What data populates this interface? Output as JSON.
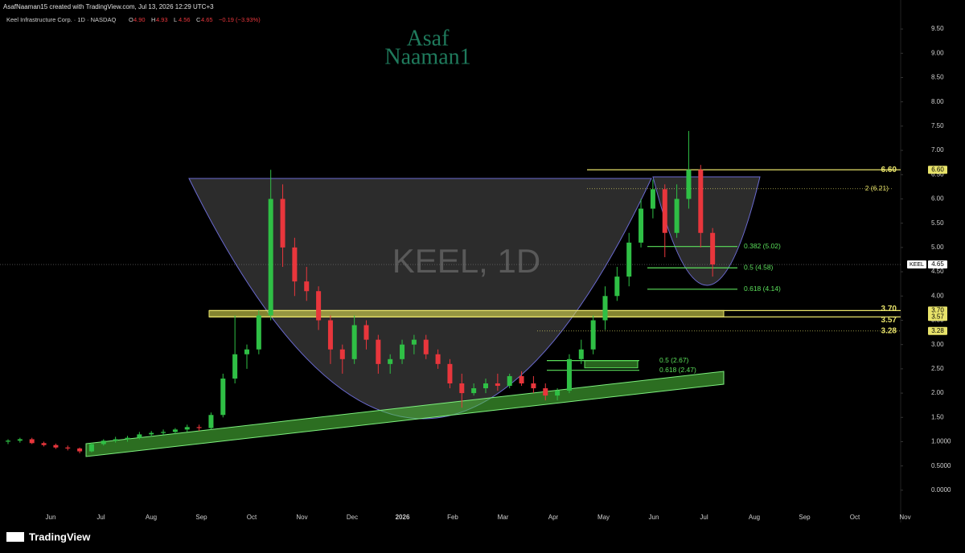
{
  "chart_data": {
    "type": "candlestick",
    "header": "AsafNaaman15 created with TradingView.com, Jul 13, 2026 12:29 UTC+3",
    "symbol_line": "Keel Infrastructure Corp. · 1D · NASDAQ",
    "ohlc_header": [
      {
        "key": "O",
        "value": 4.9,
        "label": "4.90"
      },
      {
        "key": "H",
        "value": 4.93,
        "label": "4.93"
      },
      {
        "key": "L",
        "value": 4.56,
        "label": "4.56"
      },
      {
        "key": "C",
        "value": 4.65,
        "label": "4.65"
      }
    ],
    "change": "−0.19 (−3.93%)",
    "watermark": "KEEL, 1D",
    "logo": [
      "Asaf",
      "Naaman1"
    ],
    "brand": "TradingView",
    "x_labels": [
      "Jun",
      "Jul",
      "Aug",
      "Sep",
      "Oct",
      "Nov",
      "Dec",
      "2026",
      "Feb",
      "Mar",
      "Apr",
      "May",
      "Jun",
      "Jul",
      "Aug",
      "Sep",
      "Oct",
      "Nov"
    ],
    "up_color": "#2fbf45",
    "down_color": "#e8363c",
    "ylim": [
      -0.3,
      9.7
    ],
    "yticks": [
      {
        "value": 0,
        "label": "0.0000"
      },
      {
        "value": 0.5,
        "label": "0.5000"
      },
      {
        "value": 1,
        "label": "1.0000"
      },
      {
        "value": 1.5,
        "label": "1.50"
      },
      {
        "value": 2,
        "label": "2.00"
      },
      {
        "value": 2.5,
        "label": "2.50"
      },
      {
        "value": 3,
        "label": "3.00"
      },
      {
        "value": 3.5,
        "label": "3.50"
      },
      {
        "value": 4,
        "label": "4.00"
      },
      {
        "value": 4.5,
        "label": "4.50"
      },
      {
        "value": 5,
        "label": "5.00"
      },
      {
        "value": 5.5,
        "label": "5.50"
      },
      {
        "value": 6,
        "label": "6.00"
      },
      {
        "value": 6.5,
        "label": "6.50"
      },
      {
        "value": 7,
        "label": "7.00"
      },
      {
        "value": 7.5,
        "label": "7.50"
      },
      {
        "value": 8,
        "label": "8.00"
      },
      {
        "value": 8.5,
        "label": "8.50"
      },
      {
        "value": 9,
        "label": "9.00"
      },
      {
        "value": 9.5,
        "label": "9.50"
      }
    ],
    "open": [
      1.0,
      1.02,
      1.05,
      0.97,
      0.93,
      0.88,
      0.86,
      0.8,
      0.95,
      1.02,
      1.05,
      1.08,
      1.15,
      1.18,
      1.2,
      1.25,
      1.3,
      1.28,
      1.55,
      2.3,
      2.8,
      2.9,
      3.6,
      6.0,
      5.0,
      4.3,
      4.1,
      3.5,
      2.9,
      2.7,
      3.4,
      3.1,
      2.6,
      2.7,
      3.0,
      3.1,
      2.8,
      2.6,
      2.2,
      2.0,
      2.1,
      2.2,
      2.15,
      2.35,
      2.2,
      2.1,
      1.95,
      2.05,
      2.7,
      2.9,
      3.5,
      4.0,
      4.4,
      5.1,
      5.8,
      6.2,
      5.3,
      6.0,
      6.6,
      5.3
    ],
    "high": [
      1.05,
      1.08,
      1.08,
      1.0,
      0.96,
      0.92,
      0.88,
      0.98,
      1.05,
      1.1,
      1.12,
      1.2,
      1.22,
      1.25,
      1.28,
      1.35,
      1.35,
      1.6,
      2.4,
      3.6,
      3.0,
      3.7,
      6.6,
      6.3,
      5.2,
      4.6,
      4.2,
      3.6,
      3.0,
      3.6,
      3.5,
      3.2,
      2.8,
      3.1,
      3.2,
      3.2,
      2.9,
      2.7,
      2.4,
      2.2,
      2.3,
      2.4,
      2.4,
      2.45,
      2.35,
      2.2,
      2.1,
      2.8,
      3.1,
      3.6,
      4.2,
      4.6,
      5.3,
      6.0,
      6.4,
      6.3,
      6.3,
      7.4,
      6.7,
      5.4
    ],
    "low": [
      0.95,
      0.98,
      0.95,
      0.9,
      0.85,
      0.82,
      0.76,
      0.78,
      0.92,
      0.98,
      1.0,
      1.05,
      1.1,
      1.12,
      1.15,
      1.2,
      1.22,
      1.25,
      1.5,
      2.2,
      2.5,
      2.8,
      3.5,
      4.6,
      4.0,
      3.9,
      3.3,
      2.6,
      2.4,
      2.6,
      2.9,
      2.4,
      2.4,
      2.6,
      2.8,
      2.7,
      2.5,
      2.1,
      1.7,
      1.95,
      2.0,
      2.05,
      2.1,
      2.15,
      2.0,
      1.85,
      1.85,
      2.0,
      2.6,
      2.8,
      3.3,
      3.9,
      4.2,
      5.0,
      5.6,
      4.8,
      5.2,
      5.8,
      5.0,
      4.4
    ],
    "close": [
      1.02,
      1.05,
      0.97,
      0.93,
      0.88,
      0.86,
      0.8,
      0.95,
      1.02,
      1.05,
      1.08,
      1.15,
      1.18,
      1.2,
      1.25,
      1.3,
      1.28,
      1.55,
      2.3,
      2.8,
      2.9,
      3.6,
      6.0,
      5.0,
      4.3,
      4.1,
      3.5,
      2.9,
      2.7,
      3.4,
      3.1,
      2.6,
      2.7,
      3.0,
      3.1,
      2.8,
      2.6,
      2.2,
      2.0,
      2.1,
      2.2,
      2.15,
      2.35,
      2.2,
      2.1,
      1.95,
      2.05,
      2.7,
      2.9,
      3.5,
      4.0,
      4.4,
      5.1,
      5.8,
      6.2,
      5.3,
      6.0,
      6.6,
      5.3,
      4.65
    ],
    "levels": [
      {
        "value": 6.6,
        "label": "6.60",
        "color": "#e8e36a"
      },
      {
        "value": 6.21,
        "label": "2 (6.21)",
        "color": "#e8e36a"
      },
      {
        "value": 5.02,
        "label": "0.382 (5.02)",
        "color": "#5be05b"
      },
      {
        "value": 4.58,
        "label": "0.5 (4.58)",
        "color": "#5be05b"
      },
      {
        "value": 4.14,
        "label": "0.618 (4.14)",
        "color": "#5be05b"
      },
      {
        "value": 3.7,
        "label": "3.70",
        "color": "#e8e36a"
      },
      {
        "value": 3.57,
        "label": "3.57",
        "color": "#e8e36a"
      },
      {
        "value": 3.28,
        "label": "3.28",
        "color": "#e8e36a"
      },
      {
        "value": 2.67,
        "label": "0.5 (2.67)",
        "color": "#5be05b"
      },
      {
        "value": 2.47,
        "label": "0.618 (2.47)",
        "color": "#5be05b"
      }
    ],
    "price_tags": [
      {
        "value": 6.6,
        "label": "6.60"
      },
      {
        "value": 3.7,
        "label": "3.70"
      },
      {
        "value": 3.57,
        "label": "3.57"
      },
      {
        "value": 3.28,
        "label": "3.28"
      }
    ],
    "last": {
      "symbol": "KEEL",
      "value": 4.65,
      "label": "4.65"
    }
  }
}
